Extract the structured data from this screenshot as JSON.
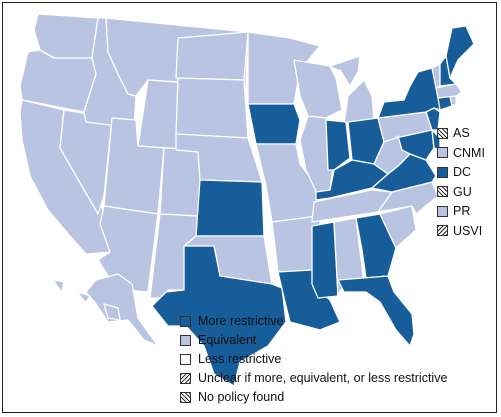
{
  "colors": {
    "more_restrictive": "#165d9a",
    "equivalent": "#b9c3e2",
    "less_restrictive": "#ffffff",
    "state_border": "#ffffff",
    "text": "#111111"
  },
  "territories": [
    {
      "code": "AS",
      "category": "no_policy_found"
    },
    {
      "code": "CNMI",
      "category": "equivalent"
    },
    {
      "code": "DC",
      "category": "more_restrictive"
    },
    {
      "code": "GU",
      "category": "no_policy_found"
    },
    {
      "code": "PR",
      "category": "equivalent"
    },
    {
      "code": "USVI",
      "category": "unclear"
    }
  ],
  "legend": [
    {
      "label": "More restrictive",
      "category": "more_restrictive"
    },
    {
      "label": "Equivalent",
      "category": "equivalent"
    },
    {
      "label": "Less restrictive",
      "category": "less_restrictive"
    },
    {
      "label": "Unclear if more, equivalent, or less restrictive",
      "category": "unclear"
    },
    {
      "label": "No policy found",
      "category": "no_policy_found"
    }
  ],
  "states": {
    "more_restrictive": [
      "IA",
      "KS",
      "TX",
      "LA",
      "MS",
      "GA",
      "FL",
      "KY",
      "IN",
      "OH",
      "VA",
      "MD",
      "DE",
      "NJ",
      "NY",
      "CT",
      "NH",
      "ME"
    ],
    "equivalent": [
      "WA",
      "OR",
      "CA",
      "NV",
      "ID",
      "MT",
      "WY",
      "UT",
      "AZ",
      "CO",
      "NM",
      "ND",
      "SD",
      "NE",
      "OK",
      "MN",
      "WI",
      "MI",
      "IL",
      "MO",
      "AR",
      "TN",
      "AL",
      "SC",
      "NC",
      "WV",
      "PA",
      "VT",
      "MA",
      "RI",
      "AK",
      "HI"
    ]
  }
}
